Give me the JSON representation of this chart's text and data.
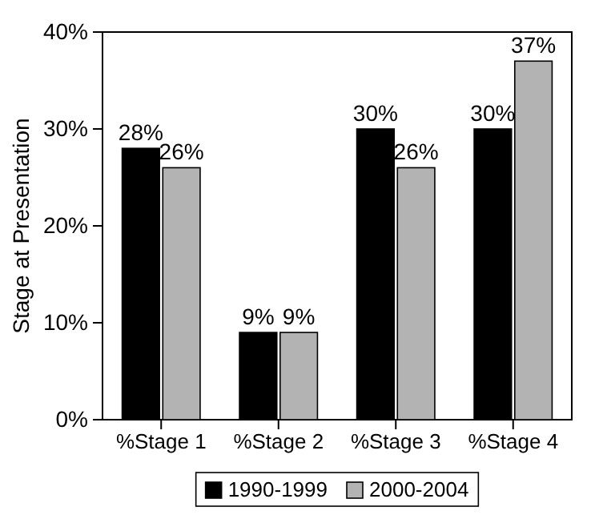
{
  "chart_data": {
    "type": "bar",
    "ylabel": "Stage at Presentation",
    "categories": [
      "%Stage 1",
      "%Stage 2",
      "%Stage 3",
      "%Stage 4"
    ],
    "series": [
      {
        "name": "1990-1999",
        "color": "#000000",
        "values": [
          28,
          9,
          30,
          30
        ],
        "value_labels": [
          "28%",
          "9%",
          "30%",
          "30%"
        ]
      },
      {
        "name": "2000-2004",
        "color": "#b3b3b3",
        "values": [
          26,
          9,
          26,
          37
        ],
        "value_labels": [
          "26%",
          "9%",
          "26%",
          "37%"
        ]
      }
    ],
    "ylim": [
      0,
      40
    ],
    "yticks": [
      {
        "value": 0,
        "label": "0%"
      },
      {
        "value": 10,
        "label": "10%"
      },
      {
        "value": 20,
        "label": "20%"
      },
      {
        "value": 30,
        "label": "30%"
      },
      {
        "value": 40,
        "label": "40%"
      }
    ],
    "grid": false,
    "legend": "bottom"
  }
}
